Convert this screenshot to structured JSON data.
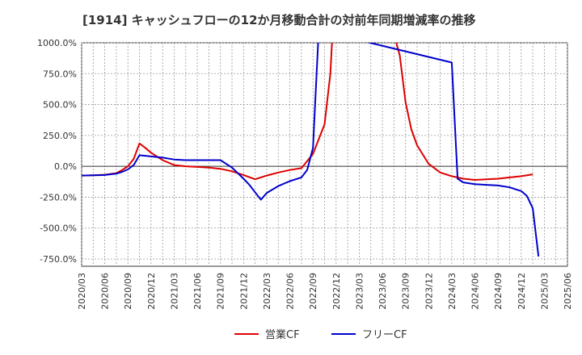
{
  "chart_data": {
    "type": "line",
    "title": "[1914]  キャッシュフローの12か月移動合計の対前年同期増減率の推移",
    "xlabel": "",
    "ylabel": "",
    "ylim": [
      -800,
      1000
    ],
    "y_ticks": [
      1000,
      750,
      500,
      250,
      0,
      -250,
      -500,
      -750
    ],
    "y_tick_labels": [
      "1000.0%",
      "750.0%",
      "500.0%",
      "250.0%",
      "0.0%",
      "-250.0%",
      "-500.0%",
      "-750.0%"
    ],
    "x_tick_labels": [
      "2020/03",
      "2020/06",
      "2020/09",
      "2020/12",
      "2021/03",
      "2021/06",
      "2021/09",
      "2021/12",
      "2022/03",
      "2022/06",
      "2022/09",
      "2022/12",
      "2023/03",
      "2023/06",
      "2023/09",
      "2023/12",
      "2024/03",
      "2024/06",
      "2024/09",
      "2024/12",
      "2025/03",
      "2025/06"
    ],
    "grid": true,
    "legend_position": "bottom",
    "series": [
      {
        "name": "営業CF",
        "color": "#dd0000",
        "values": [
          [
            0,
            -75
          ],
          [
            1,
            -72
          ],
          [
            2,
            -68
          ],
          [
            3,
            -55
          ],
          [
            3.5,
            -30
          ],
          [
            4,
            0
          ],
          [
            4.5,
            60
          ],
          [
            5,
            185
          ],
          [
            5.5,
            150
          ],
          [
            6,
            110
          ],
          [
            7,
            50
          ],
          [
            8,
            10
          ],
          [
            9,
            0
          ],
          [
            10,
            -5
          ],
          [
            11,
            -10
          ],
          [
            12,
            -20
          ],
          [
            13,
            -40
          ],
          [
            14,
            -70
          ],
          [
            15,
            -105
          ],
          [
            16,
            -75
          ],
          [
            17,
            -50
          ],
          [
            18,
            -30
          ],
          [
            19,
            -15
          ],
          [
            20,
            100
          ],
          [
            21,
            340
          ],
          [
            21.5,
            750
          ],
          [
            21.7,
            1100
          ],
          [
            26.9,
            1100
          ],
          [
            27.5,
            900
          ],
          [
            28,
            520
          ],
          [
            28.5,
            300
          ],
          [
            29,
            170
          ],
          [
            30,
            20
          ],
          [
            31,
            -50
          ],
          [
            32,
            -80
          ],
          [
            33,
            -100
          ],
          [
            34,
            -110
          ],
          [
            35,
            -105
          ],
          [
            36,
            -100
          ],
          [
            37,
            -90
          ],
          [
            38,
            -80
          ],
          [
            39,
            -65
          ]
        ]
      },
      {
        "name": "フリーCF",
        "color": "#0000cc",
        "values": [
          [
            0,
            -75
          ],
          [
            1,
            -73
          ],
          [
            2,
            -70
          ],
          [
            3,
            -60
          ],
          [
            3.5,
            -45
          ],
          [
            4,
            -25
          ],
          [
            4.5,
            10
          ],
          [
            5,
            90
          ],
          [
            6,
            80
          ],
          [
            7,
            70
          ],
          [
            8,
            55
          ],
          [
            9,
            50
          ],
          [
            10,
            50
          ],
          [
            11,
            50
          ],
          [
            12,
            50
          ],
          [
            13,
            -10
          ],
          [
            14,
            -100
          ],
          [
            14.5,
            -150
          ],
          [
            15,
            -210
          ],
          [
            15.5,
            -270
          ],
          [
            16,
            -215
          ],
          [
            17,
            -160
          ],
          [
            18,
            -120
          ],
          [
            19,
            -90
          ],
          [
            19.5,
            -30
          ],
          [
            20,
            150
          ],
          [
            20.5,
            1100
          ],
          [
            32,
            840
          ],
          [
            32.5,
            -100
          ],
          [
            33,
            -130
          ],
          [
            34,
            -145
          ],
          [
            35,
            -150
          ],
          [
            36,
            -155
          ],
          [
            37,
            -170
          ],
          [
            38,
            -200
          ],
          [
            38.5,
            -240
          ],
          [
            39,
            -340
          ],
          [
            39.5,
            -730
          ]
        ]
      }
    ]
  }
}
